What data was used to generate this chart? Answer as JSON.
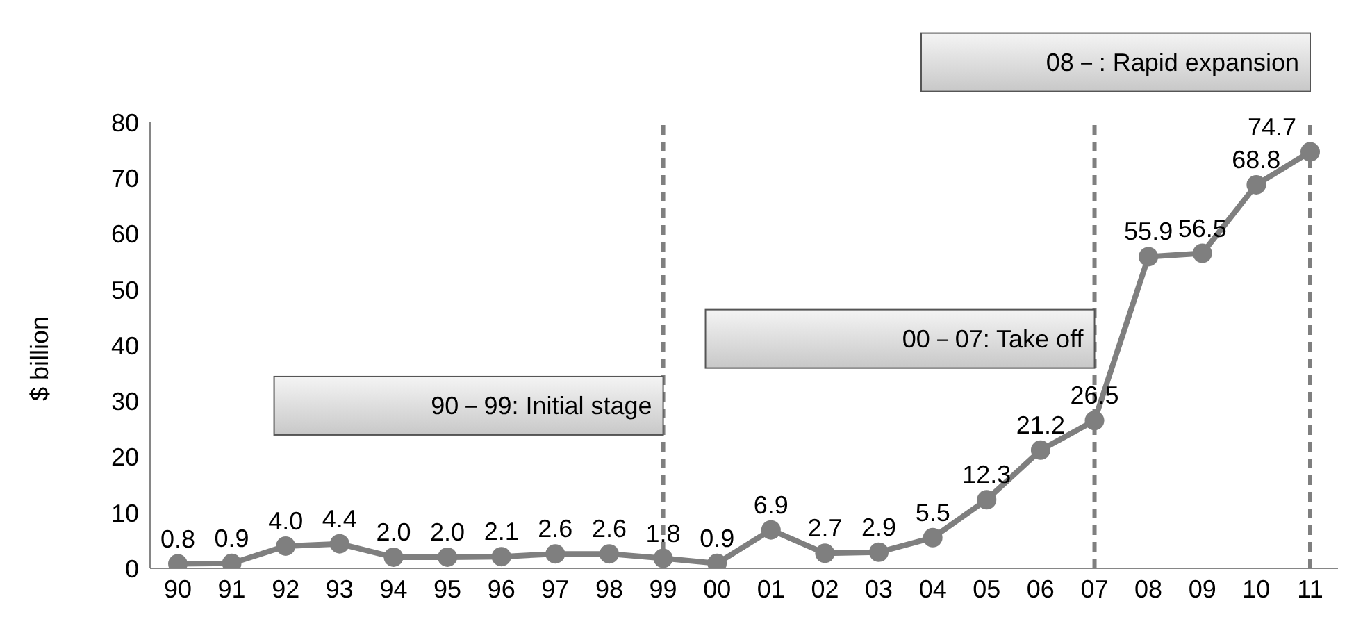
{
  "chart_data": {
    "type": "line",
    "ylabel": "$ billion",
    "categories": [
      "90",
      "91",
      "92",
      "93",
      "94",
      "95",
      "96",
      "97",
      "98",
      "99",
      "00",
      "01",
      "02",
      "03",
      "04",
      "05",
      "06",
      "07",
      "08",
      "09",
      "10",
      "11"
    ],
    "series": [
      {
        "color": "#7f7f7f",
        "values": [
          0.8,
          0.9,
          4.0,
          4.4,
          2.0,
          2.0,
          2.1,
          2.6,
          2.6,
          1.8,
          0.9,
          6.9,
          2.7,
          2.9,
          5.5,
          12.3,
          21.2,
          26.5,
          55.9,
          56.5,
          68.8,
          74.7
        ],
        "value_labels": [
          "0.8",
          "0.9",
          "4.0",
          "4.4",
          "2.0",
          "2.0",
          "2.1",
          "2.6",
          "2.6",
          "1.8",
          "0.9",
          "6.9",
          "2.7",
          "2.9",
          "5.5",
          "12.3",
          "21.2",
          "26.5",
          "55.9",
          "56.5",
          "68.8",
          "74.7"
        ]
      }
    ],
    "ylim": [
      0,
      80
    ],
    "yticks": [
      0,
      10,
      20,
      30,
      40,
      50,
      60,
      70,
      80
    ],
    "grid": false,
    "legend": false,
    "marker": "circle",
    "line_style": "solid",
    "ref_lines": [
      {
        "axis": "x",
        "value": "99",
        "label": "90－99: Initial stage",
        "line_style": "dashed",
        "color": "#7f7f7f"
      },
      {
        "axis": "x",
        "value": "07",
        "label": "00－07: Take off",
        "line_style": "dashed",
        "color": "#7f7f7f"
      },
      {
        "axis": "x",
        "value": "11",
        "label": "08－: Rapid expansion",
        "line_style": "dashed",
        "color": "#7f7f7f"
      }
    ]
  }
}
